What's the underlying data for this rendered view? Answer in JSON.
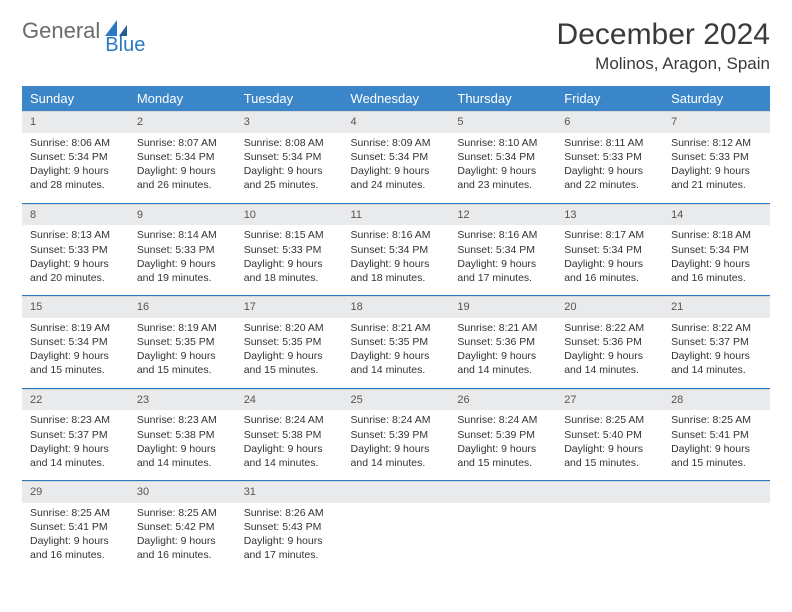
{
  "logo": {
    "part1": "General",
    "part2": "Blue"
  },
  "title": "December 2024",
  "location": "Molinos, Aragon, Spain",
  "colors": {
    "header_bg": "#3b86c8",
    "header_text": "#ffffff",
    "daynum_bg": "#e9eaeb",
    "row_border": "#2b79c2",
    "logo_gray": "#6b6b6b",
    "logo_blue": "#2b79c2"
  },
  "typography": {
    "title_fontsize": 30,
    "location_fontsize": 17,
    "header_fontsize": 13,
    "cell_fontsize": 10.5
  },
  "weekdays": [
    "Sunday",
    "Monday",
    "Tuesday",
    "Wednesday",
    "Thursday",
    "Friday",
    "Saturday"
  ],
  "weeks": [
    [
      {
        "n": "1",
        "sr": "Sunrise: 8:06 AM",
        "ss": "Sunset: 5:34 PM",
        "dl": "Daylight: 9 hours and 28 minutes."
      },
      {
        "n": "2",
        "sr": "Sunrise: 8:07 AM",
        "ss": "Sunset: 5:34 PM",
        "dl": "Daylight: 9 hours and 26 minutes."
      },
      {
        "n": "3",
        "sr": "Sunrise: 8:08 AM",
        "ss": "Sunset: 5:34 PM",
        "dl": "Daylight: 9 hours and 25 minutes."
      },
      {
        "n": "4",
        "sr": "Sunrise: 8:09 AM",
        "ss": "Sunset: 5:34 PM",
        "dl": "Daylight: 9 hours and 24 minutes."
      },
      {
        "n": "5",
        "sr": "Sunrise: 8:10 AM",
        "ss": "Sunset: 5:34 PM",
        "dl": "Daylight: 9 hours and 23 minutes."
      },
      {
        "n": "6",
        "sr": "Sunrise: 8:11 AM",
        "ss": "Sunset: 5:33 PM",
        "dl": "Daylight: 9 hours and 22 minutes."
      },
      {
        "n": "7",
        "sr": "Sunrise: 8:12 AM",
        "ss": "Sunset: 5:33 PM",
        "dl": "Daylight: 9 hours and 21 minutes."
      }
    ],
    [
      {
        "n": "8",
        "sr": "Sunrise: 8:13 AM",
        "ss": "Sunset: 5:33 PM",
        "dl": "Daylight: 9 hours and 20 minutes."
      },
      {
        "n": "9",
        "sr": "Sunrise: 8:14 AM",
        "ss": "Sunset: 5:33 PM",
        "dl": "Daylight: 9 hours and 19 minutes."
      },
      {
        "n": "10",
        "sr": "Sunrise: 8:15 AM",
        "ss": "Sunset: 5:33 PM",
        "dl": "Daylight: 9 hours and 18 minutes."
      },
      {
        "n": "11",
        "sr": "Sunrise: 8:16 AM",
        "ss": "Sunset: 5:34 PM",
        "dl": "Daylight: 9 hours and 18 minutes."
      },
      {
        "n": "12",
        "sr": "Sunrise: 8:16 AM",
        "ss": "Sunset: 5:34 PM",
        "dl": "Daylight: 9 hours and 17 minutes."
      },
      {
        "n": "13",
        "sr": "Sunrise: 8:17 AM",
        "ss": "Sunset: 5:34 PM",
        "dl": "Daylight: 9 hours and 16 minutes."
      },
      {
        "n": "14",
        "sr": "Sunrise: 8:18 AM",
        "ss": "Sunset: 5:34 PM",
        "dl": "Daylight: 9 hours and 16 minutes."
      }
    ],
    [
      {
        "n": "15",
        "sr": "Sunrise: 8:19 AM",
        "ss": "Sunset: 5:34 PM",
        "dl": "Daylight: 9 hours and 15 minutes."
      },
      {
        "n": "16",
        "sr": "Sunrise: 8:19 AM",
        "ss": "Sunset: 5:35 PM",
        "dl": "Daylight: 9 hours and 15 minutes."
      },
      {
        "n": "17",
        "sr": "Sunrise: 8:20 AM",
        "ss": "Sunset: 5:35 PM",
        "dl": "Daylight: 9 hours and 15 minutes."
      },
      {
        "n": "18",
        "sr": "Sunrise: 8:21 AM",
        "ss": "Sunset: 5:35 PM",
        "dl": "Daylight: 9 hours and 14 minutes."
      },
      {
        "n": "19",
        "sr": "Sunrise: 8:21 AM",
        "ss": "Sunset: 5:36 PM",
        "dl": "Daylight: 9 hours and 14 minutes."
      },
      {
        "n": "20",
        "sr": "Sunrise: 8:22 AM",
        "ss": "Sunset: 5:36 PM",
        "dl": "Daylight: 9 hours and 14 minutes."
      },
      {
        "n": "21",
        "sr": "Sunrise: 8:22 AM",
        "ss": "Sunset: 5:37 PM",
        "dl": "Daylight: 9 hours and 14 minutes."
      }
    ],
    [
      {
        "n": "22",
        "sr": "Sunrise: 8:23 AM",
        "ss": "Sunset: 5:37 PM",
        "dl": "Daylight: 9 hours and 14 minutes."
      },
      {
        "n": "23",
        "sr": "Sunrise: 8:23 AM",
        "ss": "Sunset: 5:38 PM",
        "dl": "Daylight: 9 hours and 14 minutes."
      },
      {
        "n": "24",
        "sr": "Sunrise: 8:24 AM",
        "ss": "Sunset: 5:38 PM",
        "dl": "Daylight: 9 hours and 14 minutes."
      },
      {
        "n": "25",
        "sr": "Sunrise: 8:24 AM",
        "ss": "Sunset: 5:39 PM",
        "dl": "Daylight: 9 hours and 14 minutes."
      },
      {
        "n": "26",
        "sr": "Sunrise: 8:24 AM",
        "ss": "Sunset: 5:39 PM",
        "dl": "Daylight: 9 hours and 15 minutes."
      },
      {
        "n": "27",
        "sr": "Sunrise: 8:25 AM",
        "ss": "Sunset: 5:40 PM",
        "dl": "Daylight: 9 hours and 15 minutes."
      },
      {
        "n": "28",
        "sr": "Sunrise: 8:25 AM",
        "ss": "Sunset: 5:41 PM",
        "dl": "Daylight: 9 hours and 15 minutes."
      }
    ],
    [
      {
        "n": "29",
        "sr": "Sunrise: 8:25 AM",
        "ss": "Sunset: 5:41 PM",
        "dl": "Daylight: 9 hours and 16 minutes."
      },
      {
        "n": "30",
        "sr": "Sunrise: 8:25 AM",
        "ss": "Sunset: 5:42 PM",
        "dl": "Daylight: 9 hours and 16 minutes."
      },
      {
        "n": "31",
        "sr": "Sunrise: 8:26 AM",
        "ss": "Sunset: 5:43 PM",
        "dl": "Daylight: 9 hours and 17 minutes."
      },
      {
        "empty": true
      },
      {
        "empty": true
      },
      {
        "empty": true
      },
      {
        "empty": true
      }
    ]
  ]
}
